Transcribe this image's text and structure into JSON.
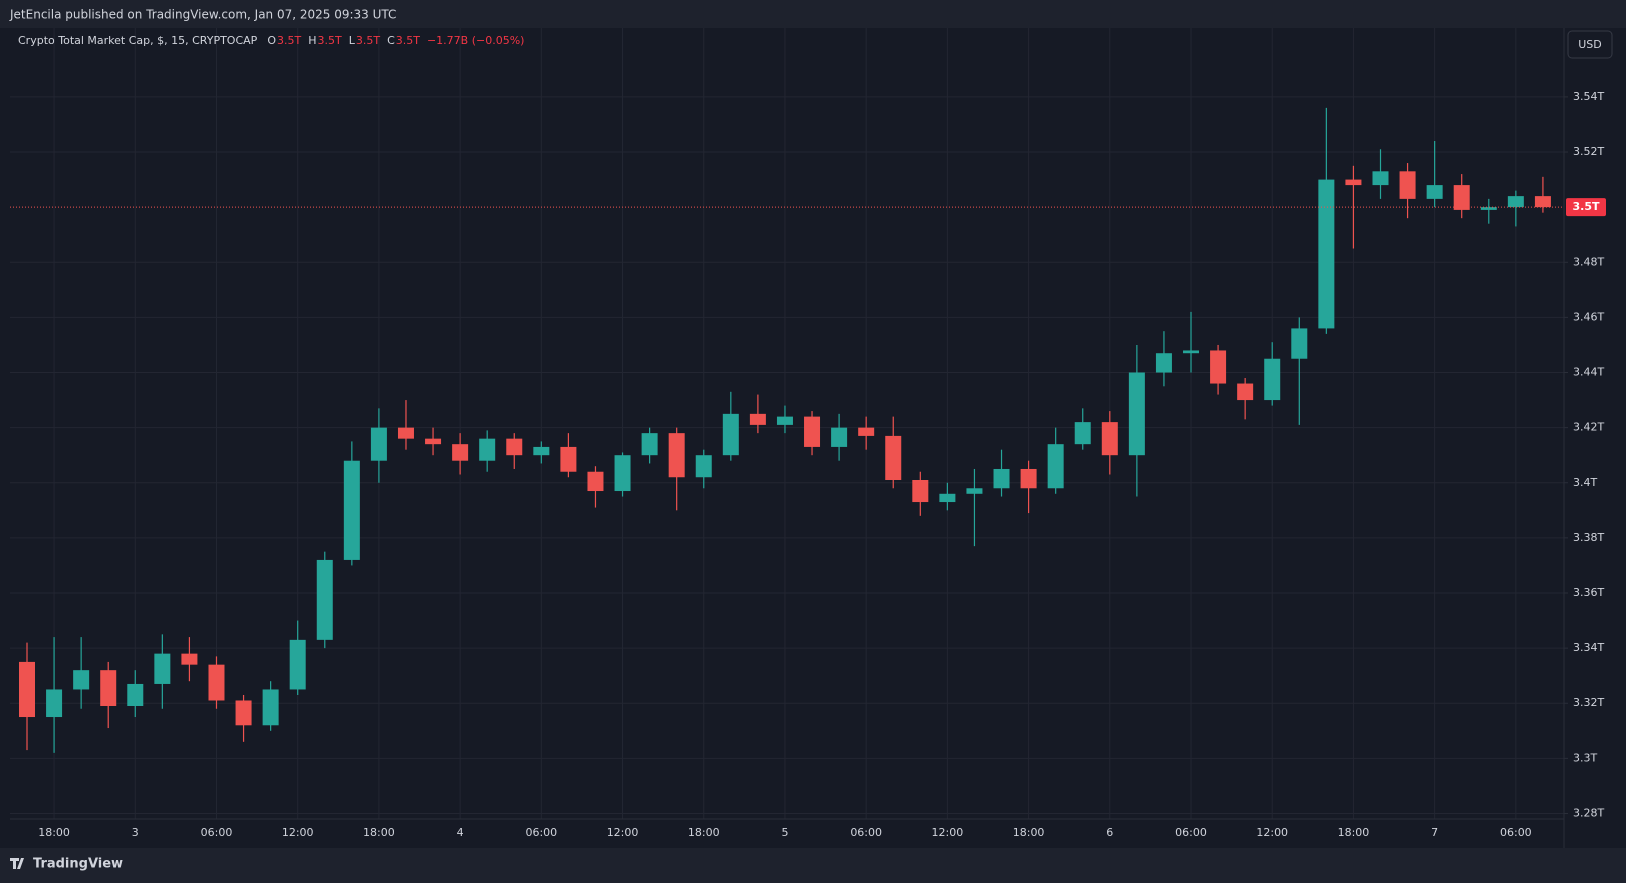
{
  "header": {
    "published": "JetEncila published on TradingView.com, Jan 07, 2025 09:33 UTC"
  },
  "footer": {
    "brand": "TradingView"
  },
  "chart_data": {
    "type": "candlestick",
    "title": "Crypto Total Market Cap, $, 15, CRYPTOCAP",
    "legend_ohlc": [
      {
        "label": "O",
        "value": "3.5T"
      },
      {
        "label": "H",
        "value": "3.5T"
      },
      {
        "label": "L",
        "value": "3.5T"
      },
      {
        "label": "C",
        "value": "3.5T"
      }
    ],
    "change": "−1.77B (−0.05%)",
    "currency": "USD",
    "last_price": {
      "value": 3.5,
      "label": "3.5T"
    },
    "up_color": "#26a69a",
    "down_color": "#ef5350",
    "grid": true,
    "categories": [
      null,
      "18:00",
      null,
      null,
      "3",
      null,
      null,
      "06:00",
      null,
      null,
      "12:00",
      null,
      null,
      "18:00",
      null,
      null,
      "4",
      null,
      null,
      "06:00",
      null,
      null,
      "12:00",
      null,
      null,
      "18:00",
      null,
      null,
      "5",
      null,
      null,
      "06:00",
      null,
      null,
      "12:00",
      null,
      null,
      "18:00",
      null,
      null,
      "6",
      null,
      null,
      "06:00",
      null,
      null,
      "12:00",
      null,
      null,
      "18:00",
      null,
      null,
      "7",
      null,
      null,
      "06:00",
      null
    ],
    "open": [
      3.335,
      3.315,
      3.325,
      3.332,
      3.319,
      3.327,
      3.338,
      3.334,
      3.321,
      3.312,
      3.325,
      3.343,
      3.372,
      3.408,
      3.42,
      3.416,
      3.414,
      3.408,
      3.416,
      3.41,
      3.413,
      3.404,
      3.397,
      3.41,
      3.418,
      3.402,
      3.41,
      3.425,
      3.421,
      3.424,
      3.413,
      3.42,
      3.417,
      3.401,
      3.393,
      3.396,
      3.398,
      3.405,
      3.398,
      3.414,
      3.422,
      3.41,
      3.44,
      3.447,
      3.448,
      3.436,
      3.43,
      3.445,
      3.456,
      3.51,
      3.508,
      3.513,
      3.503,
      3.508,
      3.499,
      3.5,
      3.504
    ],
    "high": [
      3.342,
      3.344,
      3.344,
      3.335,
      3.332,
      3.345,
      3.344,
      3.337,
      3.323,
      3.328,
      3.35,
      3.375,
      3.415,
      3.427,
      3.43,
      3.42,
      3.418,
      3.419,
      3.418,
      3.415,
      3.418,
      3.406,
      3.411,
      3.42,
      3.42,
      3.412,
      3.433,
      3.432,
      3.428,
      3.426,
      3.425,
      3.424,
      3.424,
      3.404,
      3.4,
      3.405,
      3.412,
      3.408,
      3.42,
      3.427,
      3.426,
      3.45,
      3.455,
      3.462,
      3.45,
      3.438,
      3.451,
      3.46,
      3.536,
      3.515,
      3.521,
      3.516,
      3.524,
      3.512,
      3.503,
      3.506,
      3.511
    ],
    "low": [
      3.303,
      3.302,
      3.318,
      3.311,
      3.315,
      3.318,
      3.328,
      3.318,
      3.306,
      3.31,
      3.323,
      3.34,
      3.37,
      3.4,
      3.412,
      3.41,
      3.403,
      3.404,
      3.405,
      3.407,
      3.402,
      3.391,
      3.395,
      3.407,
      3.39,
      3.398,
      3.408,
      3.418,
      3.418,
      3.41,
      3.408,
      3.412,
      3.398,
      3.388,
      3.39,
      3.377,
      3.395,
      3.389,
      3.396,
      3.412,
      3.403,
      3.395,
      3.435,
      3.44,
      3.432,
      3.423,
      3.428,
      3.421,
      3.454,
      3.485,
      3.503,
      3.496,
      3.5,
      3.496,
      3.494,
      3.493,
      3.498
    ],
    "close": [
      3.315,
      3.325,
      3.332,
      3.319,
      3.327,
      3.338,
      3.334,
      3.321,
      3.312,
      3.325,
      3.343,
      3.372,
      3.408,
      3.42,
      3.416,
      3.414,
      3.408,
      3.416,
      3.41,
      3.413,
      3.404,
      3.397,
      3.41,
      3.418,
      3.402,
      3.41,
      3.425,
      3.421,
      3.424,
      3.413,
      3.42,
      3.417,
      3.401,
      3.393,
      3.396,
      3.398,
      3.405,
      3.398,
      3.414,
      3.422,
      3.41,
      3.44,
      3.447,
      3.448,
      3.436,
      3.43,
      3.445,
      3.456,
      3.51,
      3.508,
      3.513,
      3.503,
      3.508,
      3.499,
      3.5,
      3.504,
      3.5
    ],
    "ylim": [
      3.278,
      3.565
    ],
    "yticks": [
      {
        "value": 3.28,
        "label": "3.28T"
      },
      {
        "value": 3.3,
        "label": "3.3T"
      },
      {
        "value": 3.32,
        "label": "3.32T"
      },
      {
        "value": 3.34,
        "label": "3.34T"
      },
      {
        "value": 3.36,
        "label": "3.36T"
      },
      {
        "value": 3.38,
        "label": "3.38T"
      },
      {
        "value": 3.4,
        "label": "3.4T"
      },
      {
        "value": 3.42,
        "label": "3.42T"
      },
      {
        "value": 3.44,
        "label": "3.44T"
      },
      {
        "value": 3.46,
        "label": "3.46T"
      },
      {
        "value": 3.48,
        "label": "3.48T"
      },
      {
        "value": 3.52,
        "label": "3.52T"
      },
      {
        "value": 3.54,
        "label": "3.54T"
      }
    ]
  }
}
